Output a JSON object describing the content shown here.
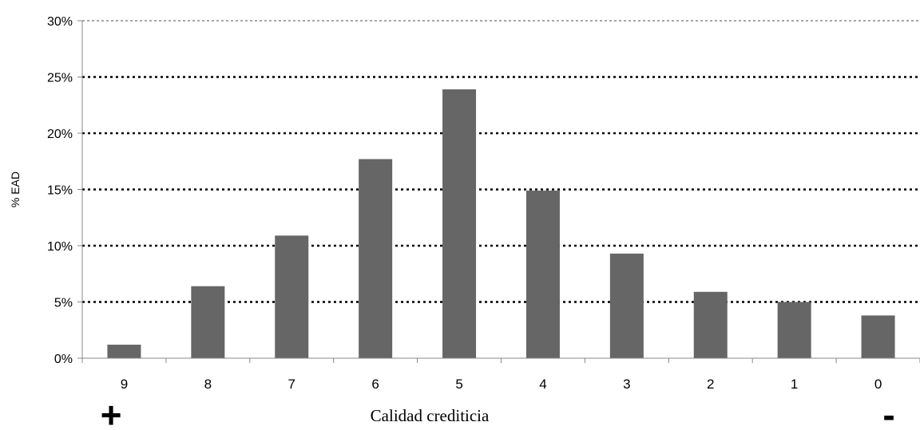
{
  "chart_data": {
    "type": "bar",
    "categories": [
      "9",
      "8",
      "7",
      "6",
      "5",
      "4",
      "3",
      "2",
      "1",
      "0"
    ],
    "values": [
      1.2,
      6.4,
      10.9,
      17.7,
      23.9,
      14.9,
      9.3,
      5.9,
      5.0,
      3.8
    ],
    "ylim": [
      0,
      30
    ],
    "yticks": [
      0,
      5,
      10,
      15,
      20,
      25,
      30
    ],
    "ytick_labels": [
      "0%",
      "5%",
      "10%",
      "15%",
      "20%",
      "25%",
      "30%"
    ],
    "xlabel": "Calidad crediticia",
    "ylabel": "% EAD",
    "grid": "horizontal dotted",
    "legend": "none",
    "bar_color": "#666666",
    "left_marker": "+",
    "right_marker": "-"
  }
}
